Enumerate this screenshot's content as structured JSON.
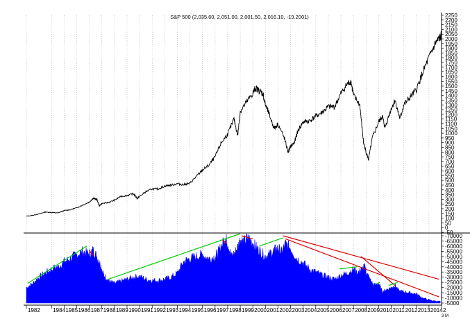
{
  "chart_data": [
    {
      "type": "line",
      "title": "S&P 500 (2,035.60, 2,051.00, 2,001.50, 2,016.10, -19.2001)",
      "ylim": [
        -50,
        2250
      ],
      "yticks": [
        2250,
        2200,
        2150,
        2100,
        2050,
        2000,
        1950,
        1900,
        1850,
        1800,
        1750,
        1700,
        1650,
        1600,
        1550,
        1500,
        1450,
        1400,
        1350,
        1300,
        1250,
        1200,
        1150,
        1100,
        1050,
        1000,
        950,
        900,
        850,
        800,
        750,
        700,
        650,
        600,
        550,
        500,
        450,
        400,
        350,
        300,
        250,
        200,
        150,
        100,
        50,
        0,
        -50
      ],
      "series": [
        {
          "x": [
            1982.0,
            1982.5,
            1983.0,
            1983.5,
            1984.0,
            1984.5,
            1985.0,
            1985.5,
            1986.0,
            1986.5,
            1987.0,
            1987.3,
            1987.6,
            1987.8,
            1988.0,
            1988.5,
            1989.0,
            1989.5,
            1990.0,
            1990.5,
            1990.8,
            1991.0,
            1991.5,
            1992.0,
            1992.5,
            1993.0,
            1993.5,
            1994.0,
            1994.5,
            1995.0,
            1995.5,
            1996.0,
            1996.5,
            1997.0,
            1997.5,
            1998.0,
            1998.5,
            1998.8,
            1999.0,
            1999.5,
            2000.0,
            2000.2,
            2000.5,
            2000.8,
            2001.0,
            2001.3,
            2001.7,
            2002.0,
            2002.5,
            2002.8,
            2003.0,
            2003.3,
            2003.6,
            2004.0,
            2004.5,
            2005.0,
            2005.5,
            2006.0,
            2006.5,
            2007.0,
            2007.5,
            2007.8,
            2008.0,
            2008.5,
            2008.8,
            2009.0,
            2009.2,
            2009.5,
            2010.0,
            2010.3,
            2010.5,
            2011.0,
            2011.3,
            2011.7,
            2012.0,
            2012.5,
            2013.0,
            2013.5,
            2014.0,
            2014.5,
            2014.8,
            2015.0
          ],
          "y": [
            120,
            130,
            145,
            165,
            160,
            155,
            180,
            190,
            210,
            240,
            270,
            310,
            300,
            230,
            255,
            265,
            290,
            330,
            340,
            360,
            310,
            330,
            380,
            410,
            410,
            440,
            450,
            465,
            455,
            470,
            540,
            610,
            660,
            750,
            900,
            990,
            1150,
            980,
            1230,
            1330,
            1420,
            1480,
            1450,
            1420,
            1300,
            1200,
            1050,
            1100,
            950,
            800,
            860,
            900,
            1030,
            1120,
            1130,
            1180,
            1220,
            1280,
            1280,
            1420,
            1520,
            1550,
            1400,
            1300,
            900,
            800,
            720,
            950,
            1120,
            1180,
            1060,
            1260,
            1350,
            1150,
            1300,
            1380,
            1460,
            1640,
            1800,
            1950,
            2000,
            2035
          ]
        }
      ]
    },
    {
      "type": "area",
      "ylim": [
        5000,
        72000
      ],
      "yticks": [
        70000,
        65000,
        60000,
        55000,
        50000,
        45000,
        40000,
        35000,
        30000,
        25000,
        20000,
        15000,
        10000,
        5000
      ],
      "series": [
        {
          "x": [
            1982.0,
            1982.5,
            1983.0,
            1983.5,
            1984.0,
            1984.5,
            1985.0,
            1985.5,
            1986.0,
            1986.5,
            1987.0,
            1987.3,
            1987.6,
            1987.9,
            1988.0,
            1988.3,
            1988.6,
            1989.0,
            1989.5,
            1990.0,
            1990.5,
            1991.0,
            1991.5,
            1992.0,
            1992.5,
            1993.0,
            1993.5,
            1994.0,
            1994.5,
            1995.0,
            1995.5,
            1996.0,
            1996.5,
            1997.0,
            1997.3,
            1997.6,
            1997.8,
            1998.0,
            1998.3,
            1998.6,
            1998.9,
            1999.0,
            1999.3,
            1999.6,
            2000.0,
            2000.3,
            2000.6,
            2001.0,
            2001.3,
            2001.7,
            2002.0,
            2002.3,
            2002.6,
            2003.0,
            2003.5,
            2004.0,
            2004.5,
            2005.0,
            2005.5,
            2006.0,
            2006.5,
            2007.0,
            2007.5,
            2008.0,
            2008.3,
            2008.6,
            2008.9,
            2009.0,
            2009.3,
            2009.6,
            2010.0,
            2010.3,
            2010.6,
            2011.0,
            2011.3,
            2011.6,
            2012.0,
            2012.5,
            2013.0,
            2013.5,
            2014.0,
            2014.5,
            2014.9
          ],
          "y": [
            20000,
            24000,
            30000,
            34000,
            38000,
            40000,
            45000,
            48000,
            52000,
            55000,
            52000,
            56000,
            50000,
            42000,
            35000,
            30000,
            26000,
            24000,
            26000,
            28000,
            30000,
            31000,
            28000,
            27000,
            27000,
            28000,
            30000,
            34000,
            45000,
            48000,
            50000,
            52000,
            48000,
            50000,
            55000,
            62000,
            68000,
            63000,
            50000,
            54000,
            62000,
            66000,
            64000,
            68000,
            63000,
            58000,
            55000,
            50000,
            52000,
            56000,
            58000,
            54000,
            62000,
            58000,
            48000,
            44000,
            38000,
            35000,
            32000,
            30000,
            28000,
            32000,
            34000,
            38000,
            34000,
            37000,
            40000,
            36000,
            28000,
            22000,
            24000,
            16000,
            18000,
            20000,
            22000,
            17000,
            16000,
            15000,
            14000,
            10000,
            8000,
            7000,
            6500
          ]
        }
      ]
    }
  ],
  "x_axis": {
    "year_labels": [
      "1982",
      "1984",
      "1985",
      "1986",
      "1987",
      "1988",
      "1989",
      "1990",
      "1991",
      "1992",
      "1993",
      "1994",
      "1995",
      "1996",
      "1997",
      "1998",
      "1999",
      "2000",
      "2001",
      "2002",
      "2003",
      "2004",
      "2005",
      "2006",
      "2007",
      "2008",
      "2009",
      "2010",
      "2011",
      "2012",
      "2013",
      "2014",
      "2"
    ],
    "xlim": [
      1982.0,
      2015.0
    ]
  },
  "corner_label": "3 M",
  "colors": {
    "price_line": "#000000",
    "volume_fill": "#0000ff",
    "up_trend": "#00cc00",
    "down_trend": "#dd0000",
    "grid": "#b0b0b0",
    "divider": "#000000"
  },
  "trendlines": [
    {
      "color": "up",
      "x1": 1982.1,
      "y1": 24000,
      "x2": 1986.8,
      "y2": 60000
    },
    {
      "color": "down",
      "x1": 1987.0,
      "y1": 56000,
      "x2": 1987.3,
      "y2": 51000
    },
    {
      "color": "up",
      "x1": 1988.5,
      "y1": 28000,
      "x2": 1999.0,
      "y2": 72000
    },
    {
      "color": "down",
      "x1": 1997.6,
      "y1": 66000,
      "x2": 1997.9,
      "y2": 62000
    },
    {
      "color": "down",
      "x1": 1999.1,
      "y1": 70000,
      "x2": 2000.0,
      "y2": 67000
    },
    {
      "color": "up",
      "x1": 2000.5,
      "y1": 60000,
      "x2": 2002.4,
      "y2": 68000
    },
    {
      "color": "down",
      "x1": 2002.4,
      "y1": 70000,
      "x2": 2014.8,
      "y2": 28000
    },
    {
      "color": "down",
      "x1": 2002.6,
      "y1": 67000,
      "x2": 2014.8,
      "y2": 11000
    },
    {
      "color": "up",
      "x1": 2006.9,
      "y1": 38000,
      "x2": 2008.3,
      "y2": 40000
    },
    {
      "color": "down",
      "x1": 2008.6,
      "y1": 50000,
      "x2": 2011.3,
      "y2": 22000
    },
    {
      "color": "up",
      "x1": 2009.7,
      "y1": 23000,
      "x2": 2010.1,
      "y2": 25000
    },
    {
      "color": "up",
      "x1": 2010.8,
      "y1": 22000,
      "x2": 2011.5,
      "y2": 25000
    }
  ]
}
